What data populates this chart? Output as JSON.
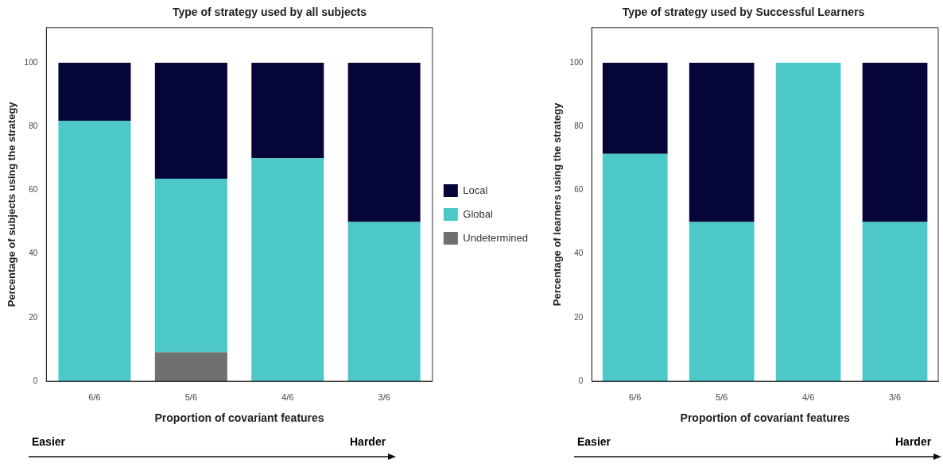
{
  "chart_data": [
    {
      "type": "bar",
      "title": "Type of strategy used by all subjects",
      "xlabel": "Proportion of covariant features",
      "ylabel": "Percentage of subjects using the strategy",
      "categories": [
        "6/6",
        "5/6",
        "4/6",
        "3/6"
      ],
      "stacked": true,
      "ylim": [
        0,
        111
      ],
      "yticks": [
        0,
        20,
        40,
        60,
        80,
        100
      ],
      "legend": "right",
      "annotations": [
        "Easier",
        "Harder"
      ],
      "series": [
        {
          "name": "Undetermined",
          "color": "#707070",
          "values": [
            0,
            9.1,
            0,
            0
          ]
        },
        {
          "name": "Global",
          "color": "#4cc8c8",
          "values": [
            81.8,
            54.5,
            70,
            50
          ]
        },
        {
          "name": "Local",
          "color": "#05053a",
          "values": [
            18.2,
            36.4,
            30,
            50
          ]
        }
      ]
    },
    {
      "type": "bar",
      "title": "Type of strategy used by Successful Learners",
      "xlabel": "Proportion of covariant features",
      "ylabel": "Percentage of learners using the strategy",
      "categories": [
        "6/6",
        "5/6",
        "4/6",
        "3/6"
      ],
      "stacked": true,
      "ylim": [
        0,
        111
      ],
      "yticks": [
        0,
        20,
        40,
        60,
        80,
        100
      ],
      "annotations": [
        "Easier",
        "Harder"
      ],
      "series": [
        {
          "color": "#4cc8c8",
          "values": [
            71.4,
            50,
            100,
            50
          ]
        },
        {
          "color": "#05053a",
          "values": [
            28.6,
            50,
            0,
            50
          ]
        }
      ]
    }
  ]
}
